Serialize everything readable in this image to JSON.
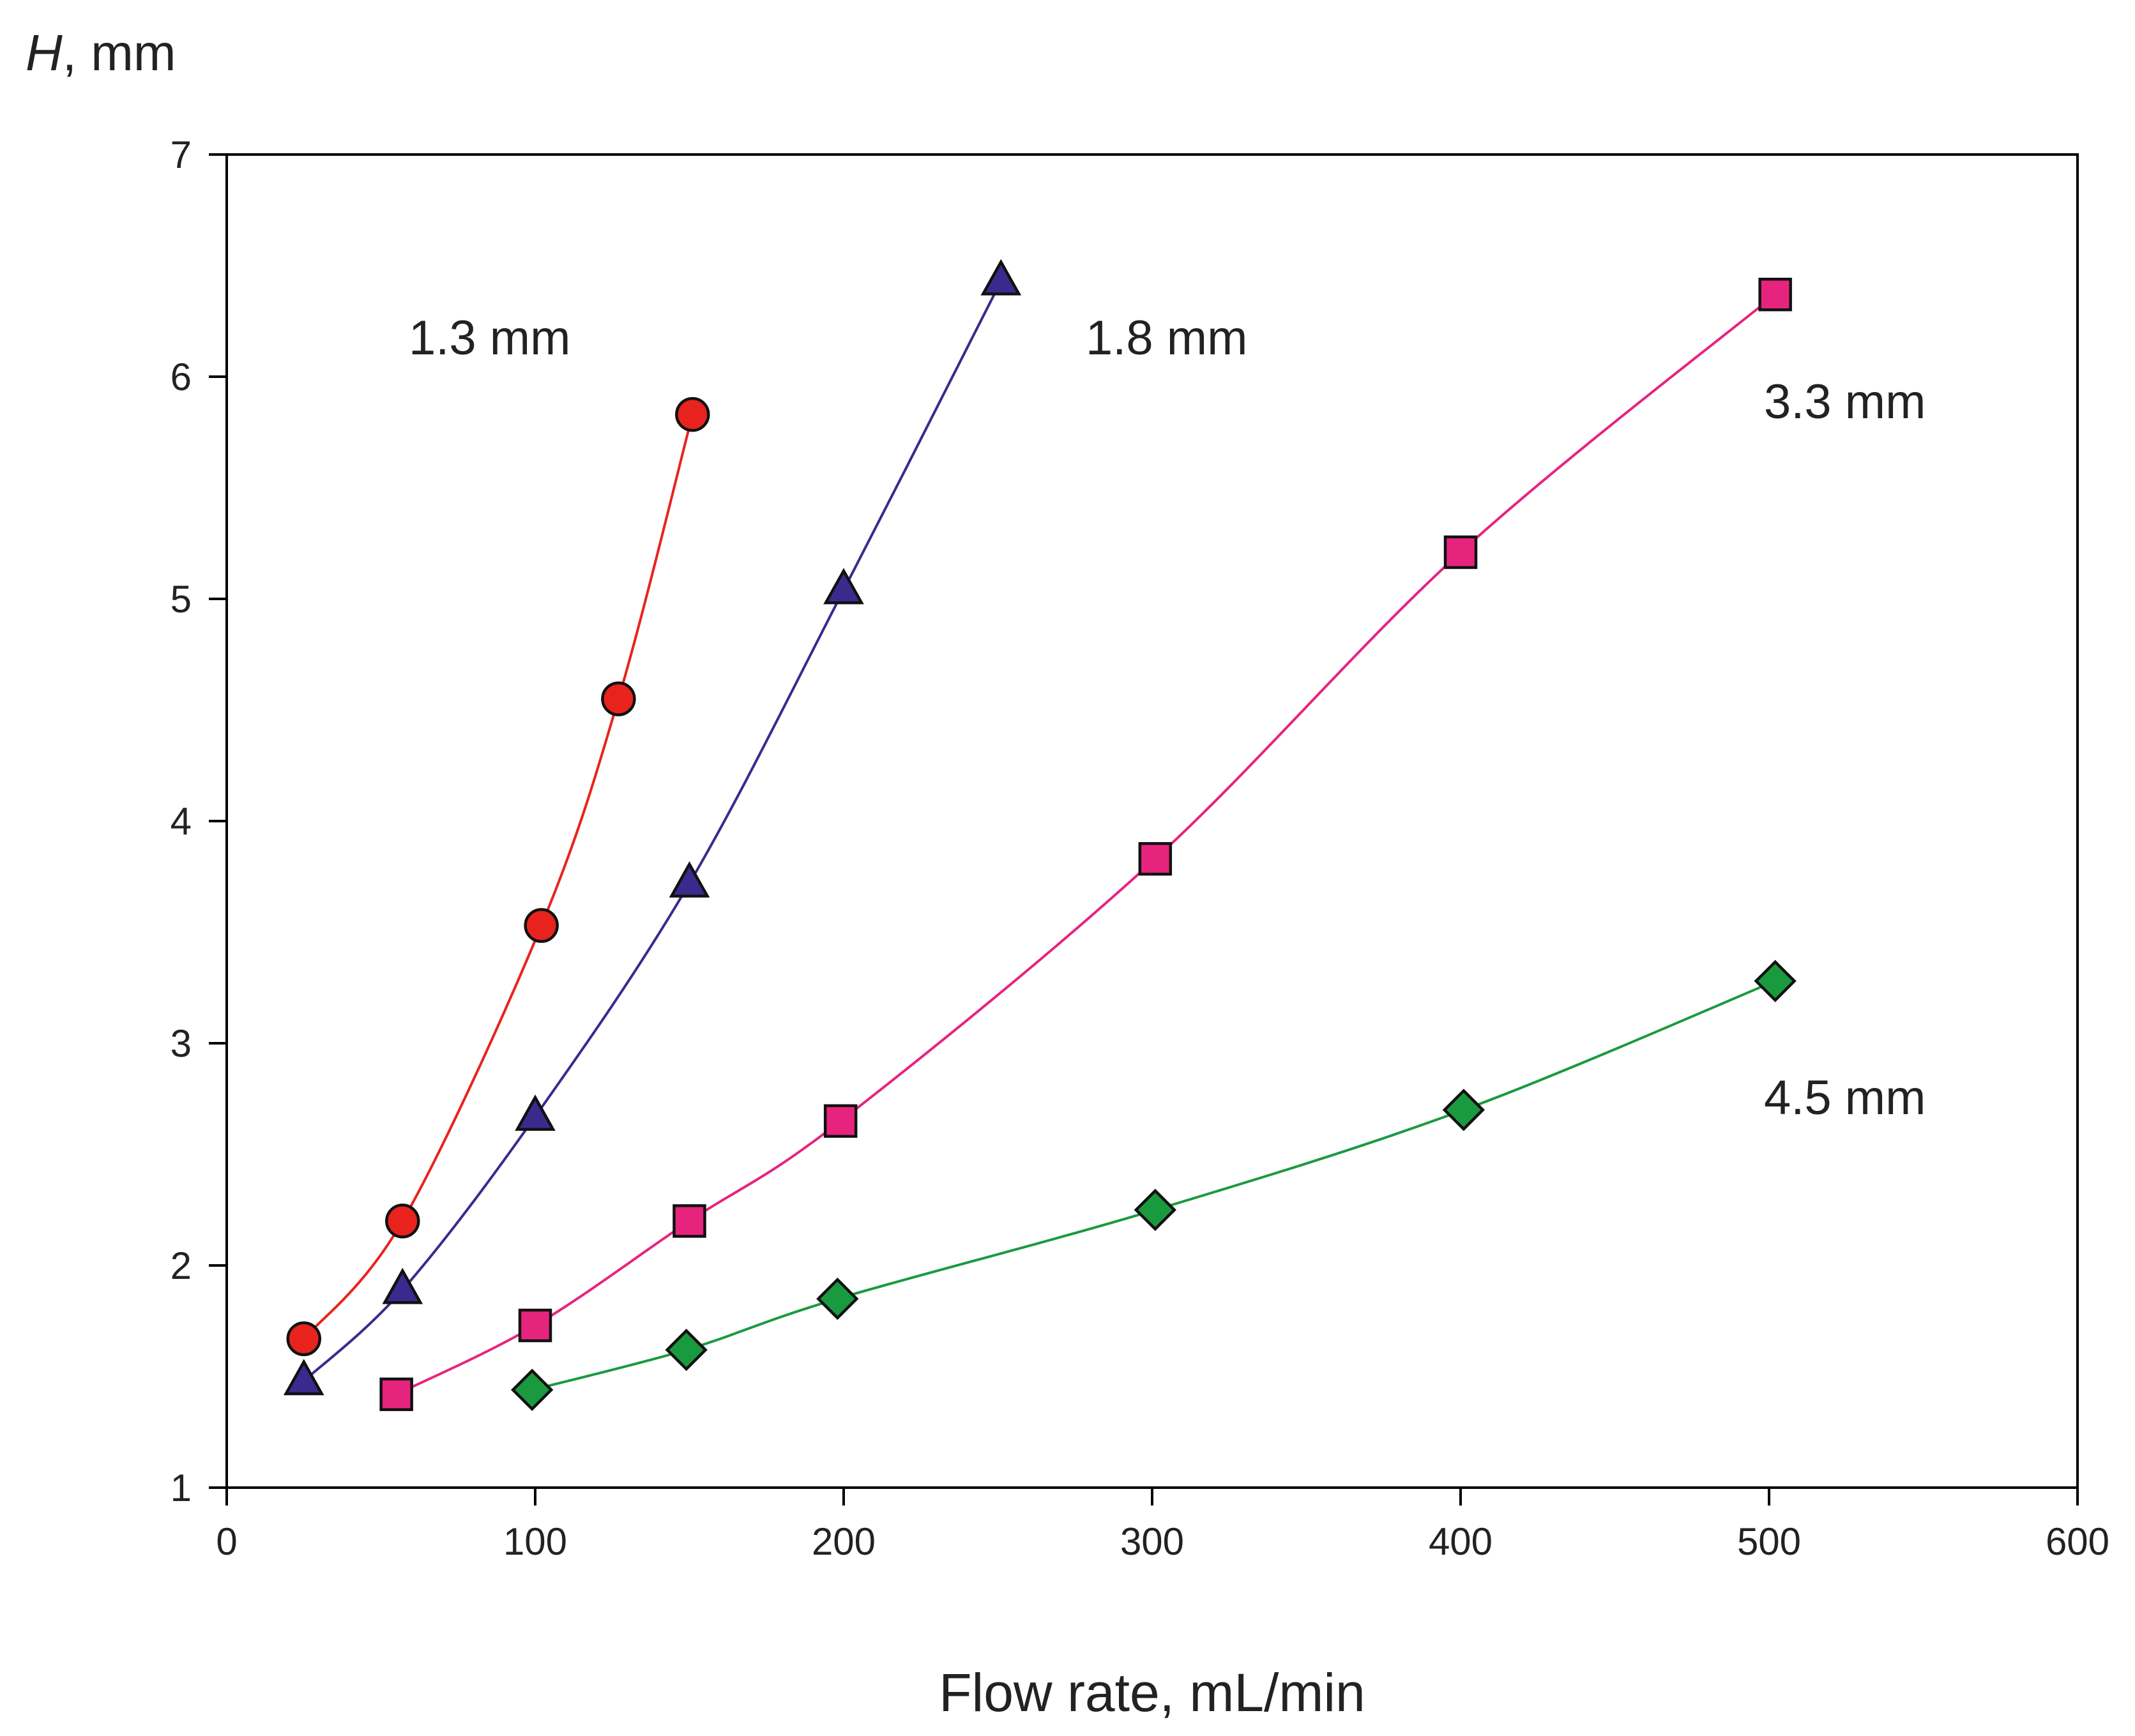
{
  "chart_data": {
    "type": "line",
    "title": "",
    "xlabel": "Flow rate, mL/min",
    "ylabel_italic": "H",
    "ylabel_rest": ", mm",
    "xlim": [
      0,
      600
    ],
    "ylim": [
      1,
      7
    ],
    "xticks": [
      0,
      100,
      200,
      300,
      400,
      500,
      600
    ],
    "yticks": [
      1,
      2,
      3,
      4,
      5,
      6,
      7
    ],
    "grid": false,
    "legend": "none",
    "series": [
      {
        "name": "1.3 mm",
        "label": "1.3 mm",
        "marker": "circle",
        "color": "#e8231e",
        "line_color": "#e8231e",
        "x": [
          25,
          57,
          102,
          127,
          151
        ],
        "y": [
          1.67,
          2.2,
          3.53,
          4.55,
          5.83
        ]
      },
      {
        "name": "1.8 mm",
        "label": "1.8 mm",
        "marker": "triangle",
        "color": "#3b2a8e",
        "line_color": "#3b2a8e",
        "x": [
          25,
          57,
          100,
          150,
          200,
          251
        ],
        "y": [
          1.48,
          1.89,
          2.67,
          3.72,
          5.04,
          6.43
        ]
      },
      {
        "name": "3.3 mm",
        "label": "3.3 mm",
        "marker": "square",
        "color": "#e6247e",
        "line_color": "#e6247e",
        "x": [
          55,
          100,
          150,
          199,
          301,
          400,
          502
        ],
        "y": [
          1.42,
          1.73,
          2.2,
          2.65,
          3.83,
          5.21,
          6.37
        ]
      },
      {
        "name": "4.5 mm",
        "label": "4.5 mm",
        "marker": "diamond",
        "color": "#1a9a3f",
        "line_color": "#1a9a3f",
        "x": [
          99,
          149,
          198,
          301,
          401,
          502
        ],
        "y": [
          1.44,
          1.62,
          1.85,
          2.25,
          2.7,
          3.28
        ]
      }
    ]
  }
}
